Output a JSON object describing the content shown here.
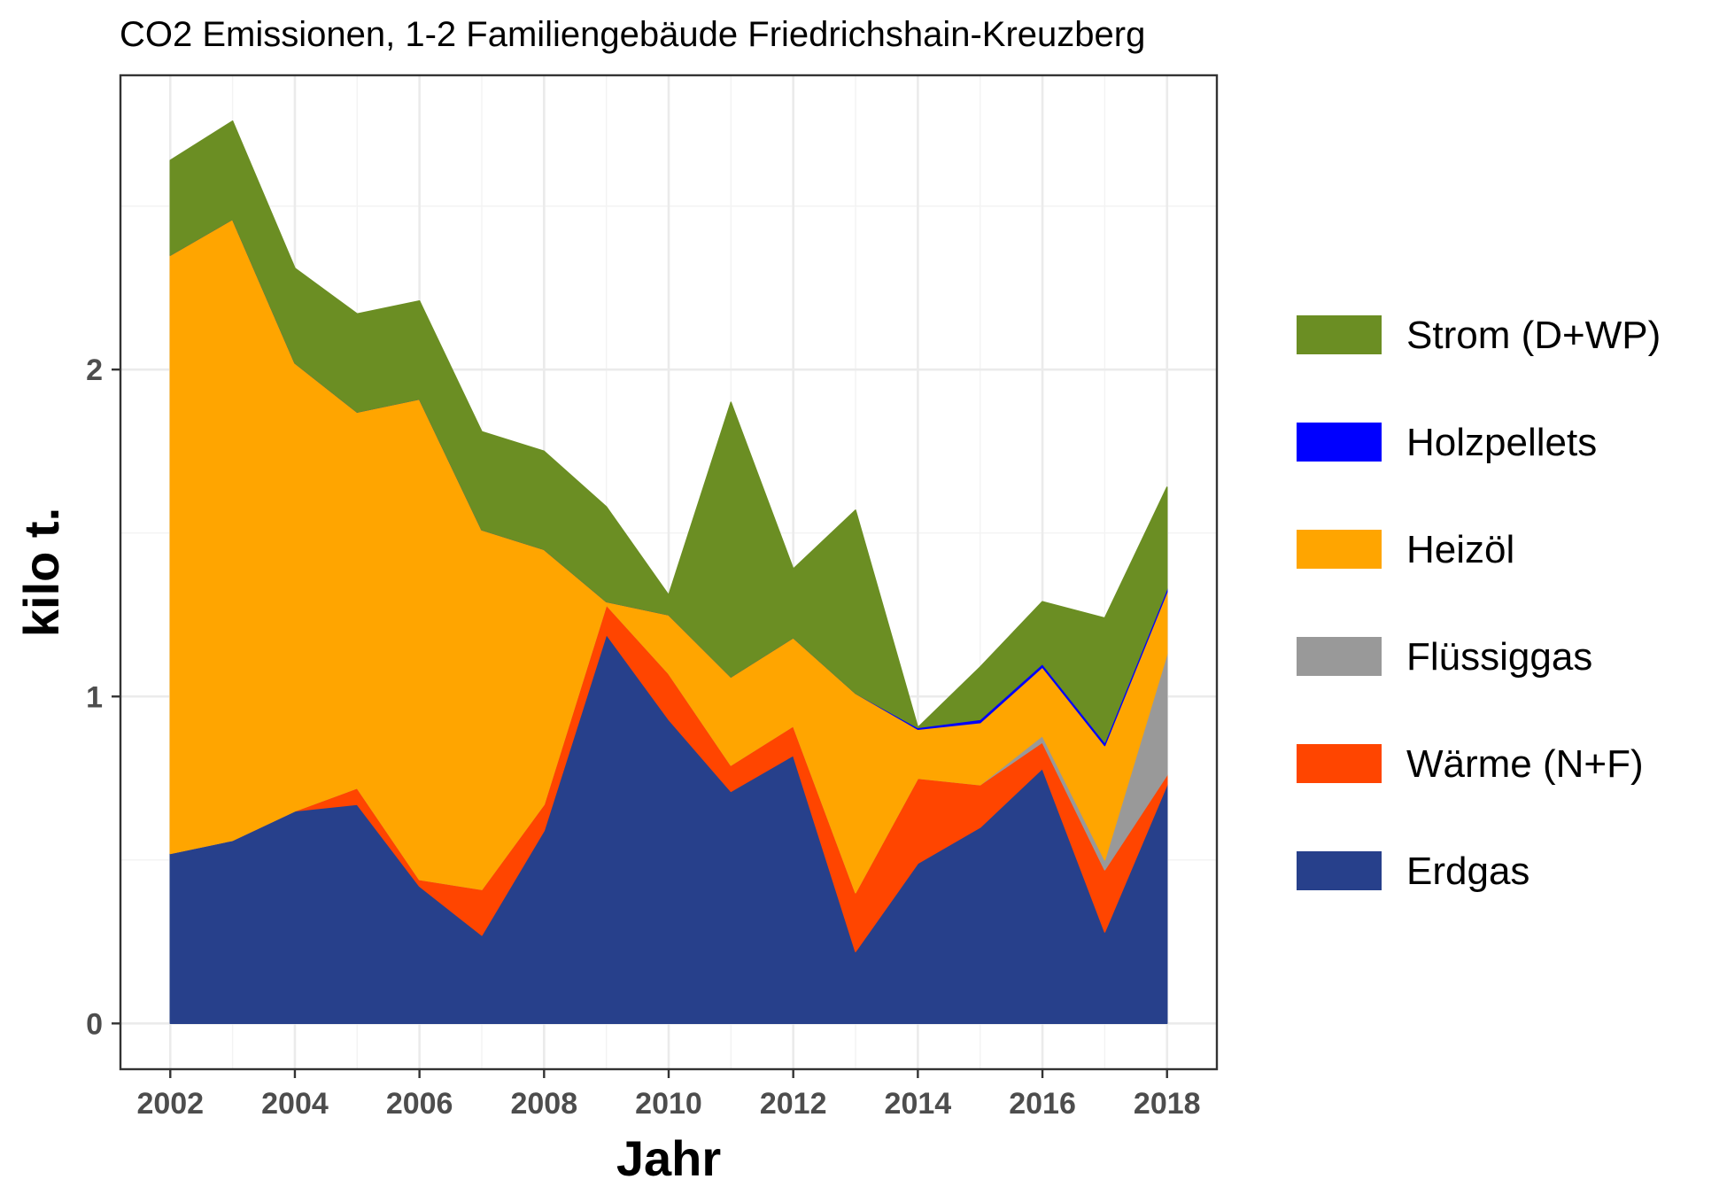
{
  "chart_data": {
    "type": "area",
    "stacked": true,
    "title": "CO2 Emissionen, 1-2 Familiengebäude Friedrichshain-Kreuzberg",
    "xlabel": "Jahr",
    "ylabel": "kilo t.",
    "x": [
      2002,
      2003,
      2004,
      2005,
      2006,
      2007,
      2008,
      2009,
      2010,
      2011,
      2012,
      2013,
      2014,
      2015,
      2016,
      2017,
      2018
    ],
    "xlim": [
      2001.2,
      2018.8
    ],
    "ylim": [
      -0.14,
      2.9
    ],
    "x_ticks": [
      2002,
      2004,
      2006,
      2008,
      2010,
      2012,
      2014,
      2016,
      2018
    ],
    "y_ticks": [
      0,
      1,
      2
    ],
    "grid": true,
    "legend_position": "right",
    "series": [
      {
        "name": "Erdgas",
        "color": "#27408b",
        "values": [
          0.52,
          0.56,
          0.65,
          0.67,
          0.42,
          0.27,
          0.59,
          1.19,
          0.93,
          0.71,
          0.82,
          0.22,
          0.49,
          0.6,
          0.78,
          0.28,
          0.73
        ]
      },
      {
        "name": "Wärme (N+F)",
        "color": "#ff4500",
        "values": [
          0.0,
          0.0,
          0.0,
          0.05,
          0.02,
          0.14,
          0.08,
          0.09,
          0.14,
          0.08,
          0.09,
          0.18,
          0.26,
          0.13,
          0.08,
          0.19,
          0.03
        ]
      },
      {
        "name": "Flüssiggas",
        "color": "#999999",
        "values": [
          0.0,
          0.0,
          0.0,
          0.0,
          0.0,
          0.0,
          0.0,
          0.0,
          0.0,
          0.0,
          0.0,
          0.0,
          0.0,
          0.0,
          0.02,
          0.03,
          0.37
        ]
      },
      {
        "name": "Heizöl",
        "color": "#ffa500",
        "values": [
          1.83,
          1.9,
          1.37,
          1.15,
          1.47,
          1.1,
          0.78,
          0.01,
          0.18,
          0.27,
          0.27,
          0.61,
          0.15,
          0.19,
          0.21,
          0.35,
          0.19
        ]
      },
      {
        "name": "Holzpellets",
        "color": "#0000ff",
        "values": [
          0.0,
          0.0,
          0.0,
          0.0,
          0.0,
          0.0,
          0.0,
          0.0,
          0.0,
          0.0,
          0.0,
          0.0,
          0.005,
          0.01,
          0.01,
          0.01,
          0.01
        ]
      },
      {
        "name": "Strom (D+WP)",
        "color": "#6b8e23",
        "values": [
          0.29,
          0.3,
          0.29,
          0.3,
          0.3,
          0.3,
          0.3,
          0.29,
          0.06,
          0.84,
          0.21,
          0.56,
          0.0,
          0.16,
          0.19,
          0.38,
          0.31
        ]
      }
    ],
    "legend_order": [
      "Strom (D+WP)",
      "Holzpellets",
      "Heizöl",
      "Flüssiggas",
      "Wärme (N+F)",
      "Erdgas"
    ]
  }
}
